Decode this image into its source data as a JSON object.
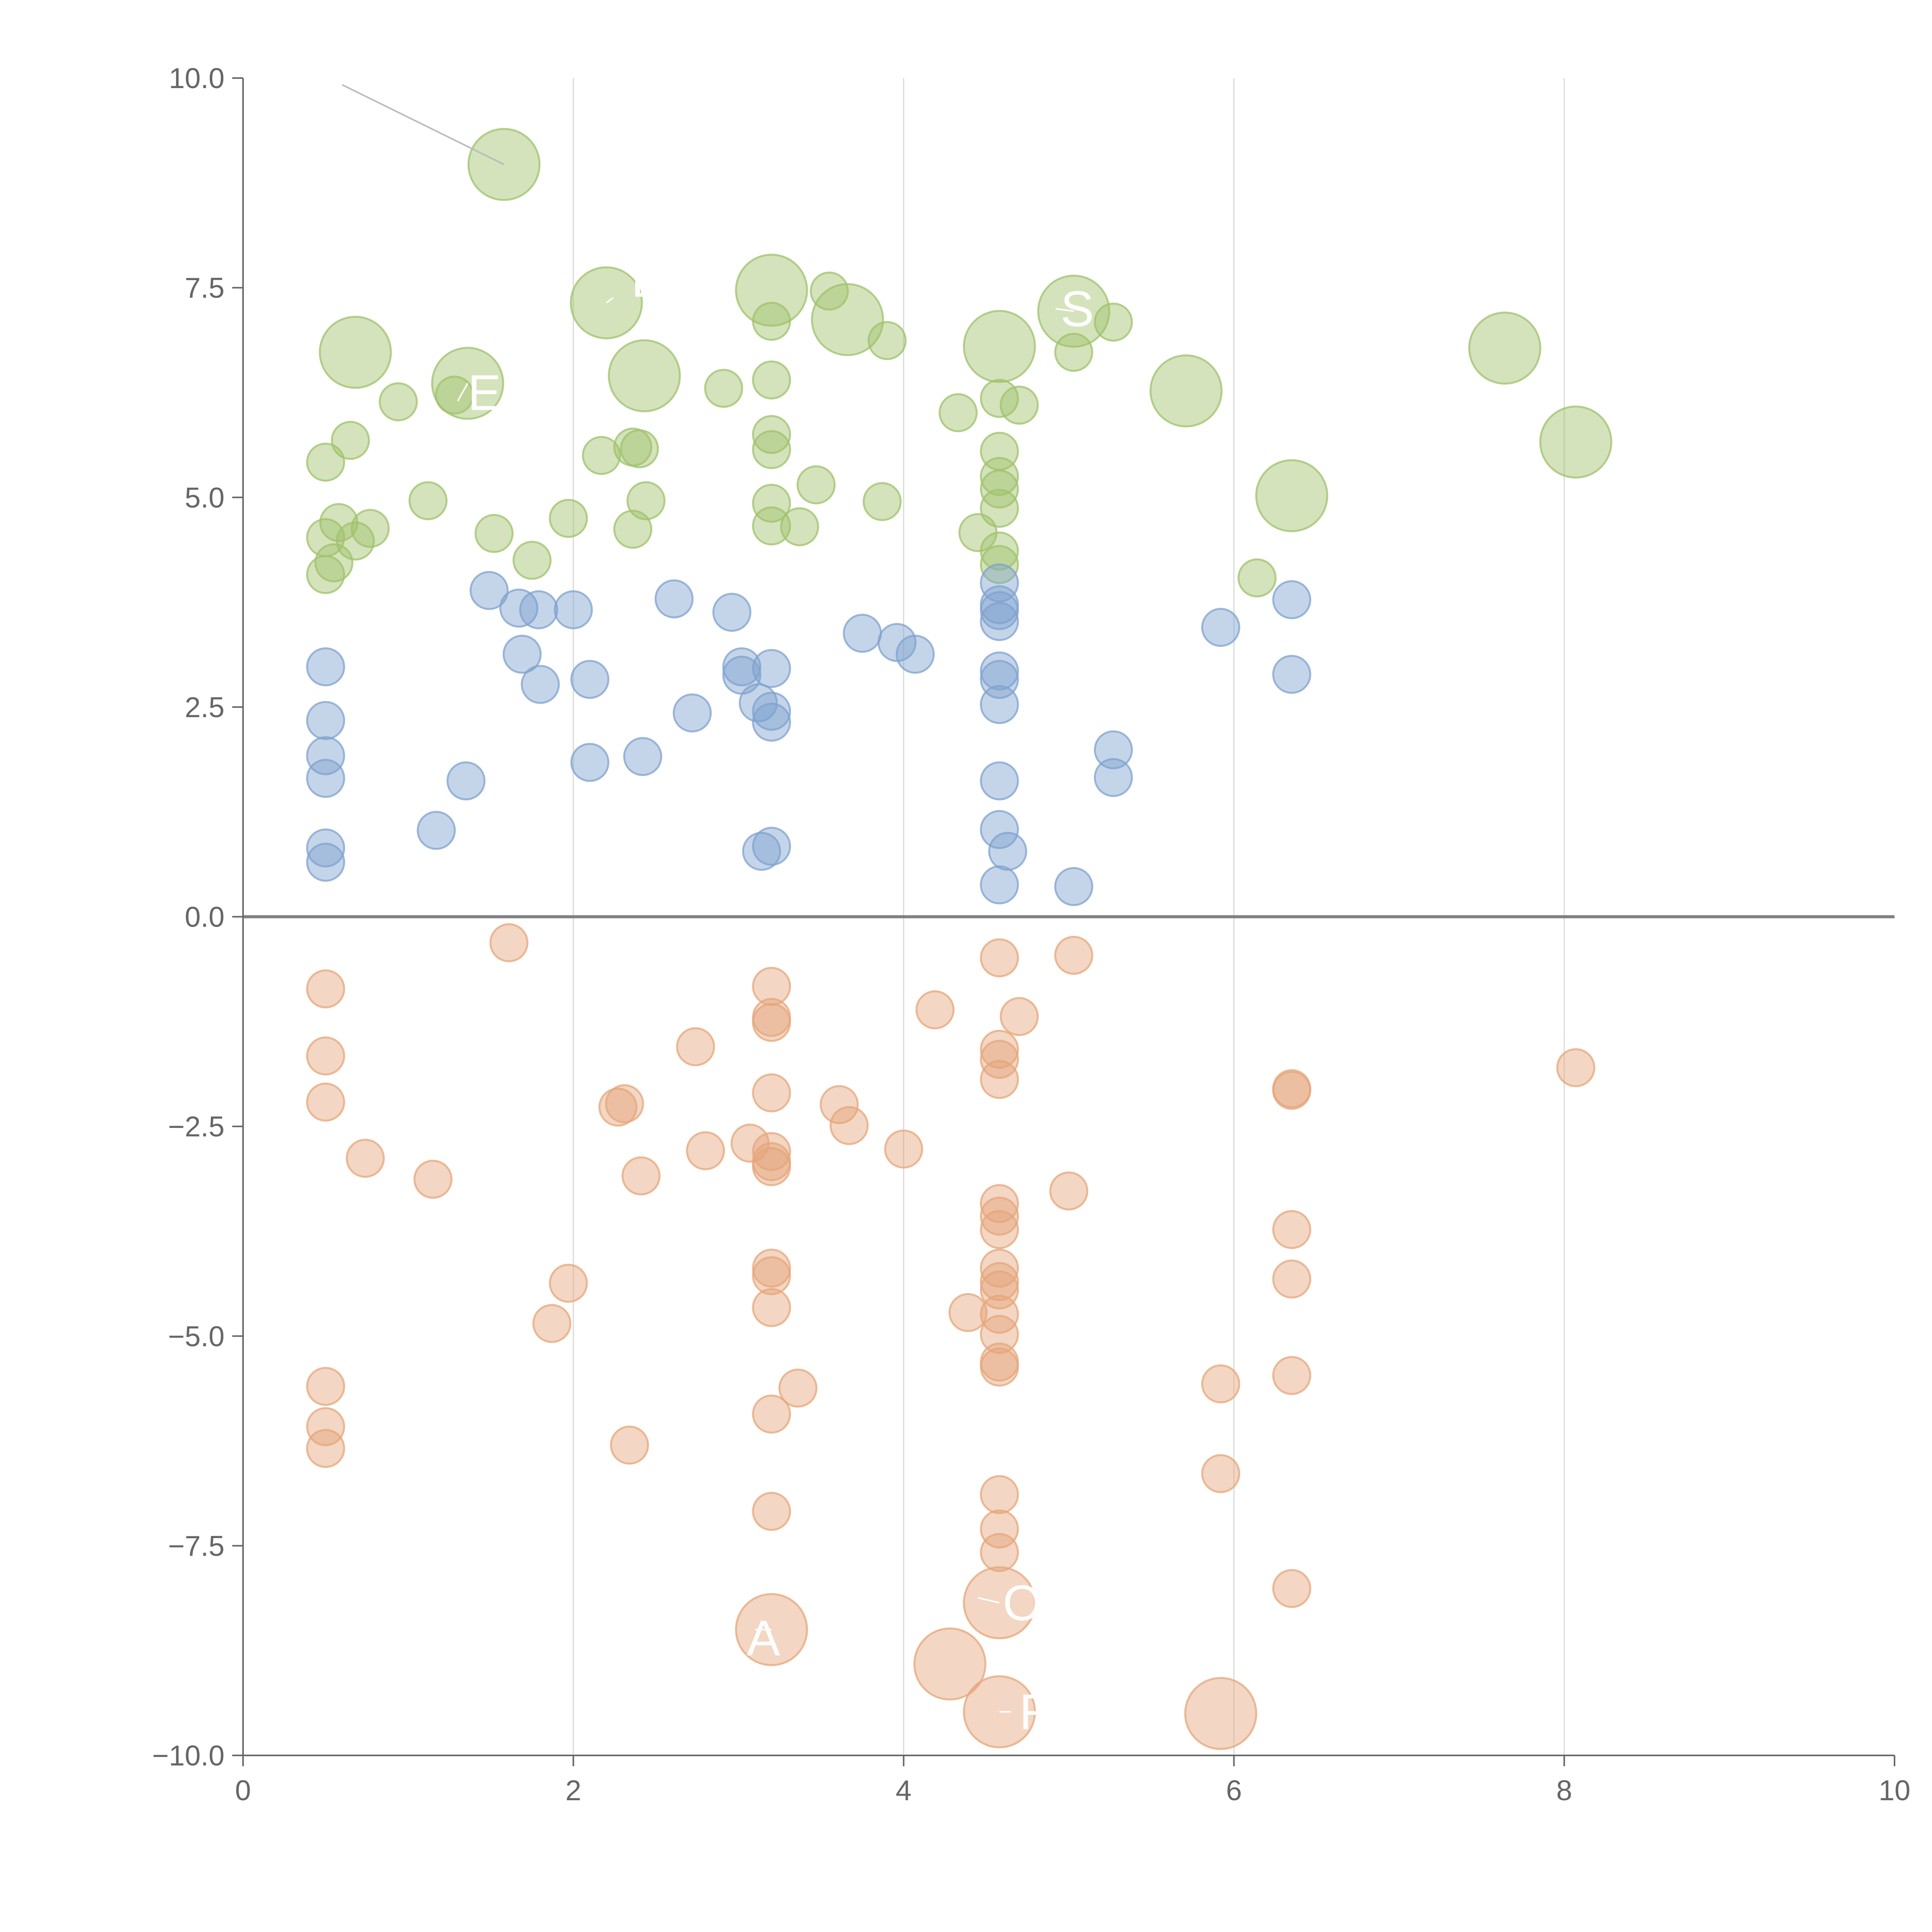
{
  "chart_data": {
    "type": "scatter",
    "subtype": "bubble",
    "title": "",
    "xlabel": "",
    "ylabel": "",
    "xlim": [
      0,
      10
    ],
    "ylim": [
      -10,
      10
    ],
    "x_ticks": [
      0,
      2,
      4,
      6,
      8,
      10
    ],
    "x_tick_labels": [
      "0",
      "2",
      "4",
      "6",
      "8",
      "10"
    ],
    "y_ticks": [
      -10,
      -7.5,
      -5,
      -2.5,
      0,
      2.5,
      5,
      7.5,
      10
    ],
    "y_tick_labels": [
      "−10.0",
      "−7.5",
      "−5.0",
      "−2.5",
      "0.0",
      "2.5",
      "5.0",
      "7.5",
      "10.0"
    ],
    "x_grid_values": [
      2,
      4,
      6,
      8
    ],
    "zero_line_y": 0,
    "series": [
      {
        "name": "green",
        "color": "#9fc26b",
        "points": [
          {
            "x": 0.5,
            "y": 5.42,
            "s": 1
          },
          {
            "x": 0.5,
            "y": 4.52,
            "s": 1
          },
          {
            "x": 0.5,
            "y": 4.08,
            "s": 1
          },
          {
            "x": 0.55,
            "y": 4.22,
            "s": 1
          },
          {
            "x": 0.58,
            "y": 4.7,
            "s": 1
          },
          {
            "x": 0.65,
            "y": 5.68,
            "s": 1
          },
          {
            "x": 0.68,
            "y": 4.48,
            "s": 1
          },
          {
            "x": 0.77,
            "y": 4.63,
            "s": 1
          },
          {
            "x": 0.94,
            "y": 6.14,
            "s": 1
          },
          {
            "x": 1.12,
            "y": 4.96,
            "s": 1
          },
          {
            "x": 1.28,
            "y": 6.22,
            "s": 1
          },
          {
            "x": 1.52,
            "y": 4.57,
            "s": 1
          },
          {
            "x": 1.75,
            "y": 4.25,
            "s": 1
          },
          {
            "x": 1.97,
            "y": 4.75,
            "s": 1
          },
          {
            "x": 2.17,
            "y": 5.5,
            "s": 1
          },
          {
            "x": 2.36,
            "y": 5.6,
            "s": 1
          },
          {
            "x": 2.36,
            "y": 4.62,
            "s": 1
          },
          {
            "x": 2.4,
            "y": 5.58,
            "s": 1
          },
          {
            "x": 2.44,
            "y": 4.96,
            "s": 1
          },
          {
            "x": 2.91,
            "y": 6.3,
            "s": 1
          },
          {
            "x": 3.2,
            "y": 7.1,
            "s": 1
          },
          {
            "x": 3.2,
            "y": 6.4,
            "s": 1
          },
          {
            "x": 3.2,
            "y": 5.75,
            "s": 1
          },
          {
            "x": 3.2,
            "y": 5.57,
            "s": 1
          },
          {
            "x": 3.2,
            "y": 4.93,
            "s": 1
          },
          {
            "x": 3.2,
            "y": 4.66,
            "s": 1
          },
          {
            "x": 3.37,
            "y": 4.65,
            "s": 1
          },
          {
            "x": 3.47,
            "y": 5.15,
            "s": 1
          },
          {
            "x": 3.55,
            "y": 7.46,
            "s": 1
          },
          {
            "x": 3.9,
            "y": 6.87,
            "s": 1
          },
          {
            "x": 3.87,
            "y": 4.95,
            "s": 1
          },
          {
            "x": 4.33,
            "y": 6.01,
            "s": 1
          },
          {
            "x": 4.45,
            "y": 4.58,
            "s": 1
          },
          {
            "x": 4.58,
            "y": 6.18,
            "s": 1
          },
          {
            "x": 4.58,
            "y": 5.55,
            "s": 1
          },
          {
            "x": 4.58,
            "y": 5.25,
            "s": 1
          },
          {
            "x": 4.58,
            "y": 5.1,
            "s": 1
          },
          {
            "x": 4.58,
            "y": 4.87,
            "s": 1
          },
          {
            "x": 4.58,
            "y": 4.36,
            "s": 1
          },
          {
            "x": 4.58,
            "y": 4.2,
            "s": 1
          },
          {
            "x": 4.7,
            "y": 6.1,
            "s": 1
          },
          {
            "x": 5.03,
            "y": 6.73,
            "s": 1
          },
          {
            "x": 5.27,
            "y": 7.09,
            "s": 1
          },
          {
            "x": 6.14,
            "y": 4.04,
            "s": 1
          },
          {
            "x": 1.58,
            "y": 8.97,
            "s": 2
          },
          {
            "x": 0.68,
            "y": 6.73,
            "s": 2
          },
          {
            "x": 1.36,
            "y": 6.36,
            "s": 2
          },
          {
            "x": 2.2,
            "y": 7.32,
            "s": 2
          },
          {
            "x": 2.43,
            "y": 6.45,
            "s": 2
          },
          {
            "x": 3.2,
            "y": 7.47,
            "s": 2
          },
          {
            "x": 3.66,
            "y": 7.12,
            "s": 2
          },
          {
            "x": 4.58,
            "y": 6.8,
            "s": 2
          },
          {
            "x": 5.03,
            "y": 7.22,
            "s": 2
          },
          {
            "x": 5.71,
            "y": 6.27,
            "s": 2
          },
          {
            "x": 6.35,
            "y": 5.02,
            "s": 2
          },
          {
            "x": 7.64,
            "y": 6.78,
            "s": 2
          },
          {
            "x": 8.07,
            "y": 5.66,
            "s": 2
          }
        ]
      },
      {
        "name": "blue",
        "color": "#7fa1cf",
        "points": [
          {
            "x": 0.5,
            "y": 2.98,
            "s": 1
          },
          {
            "x": 0.5,
            "y": 2.34,
            "s": 1
          },
          {
            "x": 0.5,
            "y": 1.92,
            "s": 1
          },
          {
            "x": 0.5,
            "y": 1.65,
            "s": 1
          },
          {
            "x": 0.5,
            "y": 0.82,
            "s": 1
          },
          {
            "x": 0.5,
            "y": 0.65,
            "s": 1
          },
          {
            "x": 1.17,
            "y": 1.03,
            "s": 1
          },
          {
            "x": 1.35,
            "y": 1.62,
            "s": 1
          },
          {
            "x": 1.49,
            "y": 3.89,
            "s": 1
          },
          {
            "x": 1.67,
            "y": 3.68,
            "s": 1
          },
          {
            "x": 1.69,
            "y": 3.13,
            "s": 1
          },
          {
            "x": 1.79,
            "y": 3.66,
            "s": 1
          },
          {
            "x": 1.8,
            "y": 2.77,
            "s": 1
          },
          {
            "x": 2.0,
            "y": 3.66,
            "s": 1
          },
          {
            "x": 2.1,
            "y": 2.83,
            "s": 1
          },
          {
            "x": 2.1,
            "y": 1.84,
            "s": 1
          },
          {
            "x": 2.42,
            "y": 1.91,
            "s": 1
          },
          {
            "x": 2.61,
            "y": 3.79,
            "s": 1
          },
          {
            "x": 2.72,
            "y": 2.43,
            "s": 1
          },
          {
            "x": 2.96,
            "y": 3.63,
            "s": 1
          },
          {
            "x": 3.02,
            "y": 2.98,
            "s": 1
          },
          {
            "x": 3.02,
            "y": 2.88,
            "s": 1
          },
          {
            "x": 3.12,
            "y": 2.55,
            "s": 1
          },
          {
            "x": 3.14,
            "y": 0.78,
            "s": 1
          },
          {
            "x": 3.2,
            "y": 2.96,
            "s": 1
          },
          {
            "x": 3.2,
            "y": 2.45,
            "s": 1
          },
          {
            "x": 3.2,
            "y": 2.32,
            "s": 1
          },
          {
            "x": 3.2,
            "y": 0.84,
            "s": 1
          },
          {
            "x": 3.75,
            "y": 3.38,
            "s": 1
          },
          {
            "x": 3.96,
            "y": 3.27,
            "s": 1
          },
          {
            "x": 4.07,
            "y": 3.13,
            "s": 1
          },
          {
            "x": 4.58,
            "y": 3.98,
            "s": 1
          },
          {
            "x": 4.58,
            "y": 3.72,
            "s": 1
          },
          {
            "x": 4.58,
            "y": 3.65,
            "s": 1
          },
          {
            "x": 4.58,
            "y": 3.52,
            "s": 1
          },
          {
            "x": 4.58,
            "y": 2.93,
            "s": 1
          },
          {
            "x": 4.58,
            "y": 2.83,
            "s": 1
          },
          {
            "x": 4.58,
            "y": 2.53,
            "s": 1
          },
          {
            "x": 4.58,
            "y": 1.62,
            "s": 1
          },
          {
            "x": 4.58,
            "y": 1.04,
            "s": 1
          },
          {
            "x": 4.58,
            "y": 0.38,
            "s": 1
          },
          {
            "x": 4.63,
            "y": 0.78,
            "s": 1
          },
          {
            "x": 5.03,
            "y": 0.36,
            "s": 1
          },
          {
            "x": 5.27,
            "y": 1.99,
            "s": 1
          },
          {
            "x": 5.27,
            "y": 1.66,
            "s": 1
          },
          {
            "x": 5.92,
            "y": 3.45,
            "s": 1
          },
          {
            "x": 6.35,
            "y": 3.78,
            "s": 1
          },
          {
            "x": 6.35,
            "y": 2.89,
            "s": 1
          }
        ]
      },
      {
        "name": "orange",
        "color": "#e5a57a",
        "points": [
          {
            "x": 0.5,
            "y": -0.86,
            "s": 1
          },
          {
            "x": 0.5,
            "y": -1.66,
            "s": 1
          },
          {
            "x": 0.5,
            "y": -2.21,
            "s": 1
          },
          {
            "x": 0.5,
            "y": -5.6,
            "s": 1
          },
          {
            "x": 0.5,
            "y": -6.08,
            "s": 1
          },
          {
            "x": 0.5,
            "y": -6.34,
            "s": 1
          },
          {
            "x": 0.74,
            "y": -2.88,
            "s": 1
          },
          {
            "x": 1.15,
            "y": -3.13,
            "s": 1
          },
          {
            "x": 1.61,
            "y": -0.31,
            "s": 1
          },
          {
            "x": 1.87,
            "y": -4.85,
            "s": 1
          },
          {
            "x": 1.97,
            "y": -4.37,
            "s": 1
          },
          {
            "x": 2.27,
            "y": -2.27,
            "s": 1
          },
          {
            "x": 2.31,
            "y": -2.23,
            "s": 1
          },
          {
            "x": 2.34,
            "y": -6.3,
            "s": 1
          },
          {
            "x": 2.41,
            "y": -3.09,
            "s": 1
          },
          {
            "x": 2.74,
            "y": -1.55,
            "s": 1
          },
          {
            "x": 2.8,
            "y": -2.79,
            "s": 1
          },
          {
            "x": 3.07,
            "y": -2.7,
            "s": 1
          },
          {
            "x": 3.2,
            "y": -0.83,
            "s": 1
          },
          {
            "x": 3.2,
            "y": -1.2,
            "s": 1
          },
          {
            "x": 3.2,
            "y": -1.26,
            "s": 1
          },
          {
            "x": 3.2,
            "y": -2.1,
            "s": 1
          },
          {
            "x": 3.2,
            "y": -2.8,
            "s": 1
          },
          {
            "x": 3.2,
            "y": -2.92,
            "s": 1
          },
          {
            "x": 3.2,
            "y": -2.98,
            "s": 1
          },
          {
            "x": 3.2,
            "y": -4.19,
            "s": 1
          },
          {
            "x": 3.2,
            "y": -4.28,
            "s": 1
          },
          {
            "x": 3.2,
            "y": -4.66,
            "s": 1
          },
          {
            "x": 3.2,
            "y": -5.93,
            "s": 1
          },
          {
            "x": 3.2,
            "y": -7.09,
            "s": 1
          },
          {
            "x": 3.36,
            "y": -5.62,
            "s": 1
          },
          {
            "x": 3.61,
            "y": -2.24,
            "s": 1
          },
          {
            "x": 3.67,
            "y": -2.49,
            "s": 1
          },
          {
            "x": 4.0,
            "y": -2.77,
            "s": 1
          },
          {
            "x": 4.19,
            "y": -1.11,
            "s": 1
          },
          {
            "x": 4.39,
            "y": -4.72,
            "s": 1
          },
          {
            "x": 4.58,
            "y": -0.49,
            "s": 1
          },
          {
            "x": 4.58,
            "y": -1.58,
            "s": 1
          },
          {
            "x": 4.58,
            "y": -1.7,
            "s": 1
          },
          {
            "x": 4.58,
            "y": -1.94,
            "s": 1
          },
          {
            "x": 4.58,
            "y": -3.42,
            "s": 1
          },
          {
            "x": 4.58,
            "y": -3.57,
            "s": 1
          },
          {
            "x": 4.58,
            "y": -3.73,
            "s": 1
          },
          {
            "x": 4.58,
            "y": -4.19,
            "s": 1
          },
          {
            "x": 4.58,
            "y": -4.35,
            "s": 1
          },
          {
            "x": 4.58,
            "y": -4.45,
            "s": 1
          },
          {
            "x": 4.58,
            "y": -4.74,
            "s": 1
          },
          {
            "x": 4.58,
            "y": -4.98,
            "s": 1
          },
          {
            "x": 4.58,
            "y": -5.31,
            "s": 1
          },
          {
            "x": 4.58,
            "y": -5.37,
            "s": 1
          },
          {
            "x": 4.58,
            "y": -6.89,
            "s": 1
          },
          {
            "x": 4.58,
            "y": -7.3,
            "s": 1
          },
          {
            "x": 4.58,
            "y": -7.58,
            "s": 1
          },
          {
            "x": 4.7,
            "y": -1.19,
            "s": 1
          },
          {
            "x": 5.0,
            "y": -3.27,
            "s": 1
          },
          {
            "x": 5.03,
            "y": -0.46,
            "s": 1
          },
          {
            "x": 5.92,
            "y": -5.57,
            "s": 1
          },
          {
            "x": 5.92,
            "y": -6.64,
            "s": 1
          },
          {
            "x": 6.35,
            "y": -2.05,
            "s": 1
          },
          {
            "x": 6.35,
            "y": -2.07,
            "s": 1
          },
          {
            "x": 6.35,
            "y": -3.73,
            "s": 1
          },
          {
            "x": 6.35,
            "y": -4.32,
            "s": 1
          },
          {
            "x": 6.35,
            "y": -5.47,
            "s": 1
          },
          {
            "x": 6.35,
            "y": -8.01,
            "s": 1
          },
          {
            "x": 8.07,
            "y": -1.8,
            "s": 1
          },
          {
            "x": 3.2,
            "y": -8.5,
            "s": 2
          },
          {
            "x": 4.28,
            "y": -8.91,
            "s": 2
          },
          {
            "x": 4.58,
            "y": -8.18,
            "s": 2
          },
          {
            "x": 4.58,
            "y": -9.48,
            "s": 2
          },
          {
            "x": 5.92,
            "y": -9.5,
            "s": 2
          }
        ]
      }
    ],
    "callouts": [
      {
        "text": "",
        "color": "#bbbbbb",
        "from": [
          1.58,
          8.97
        ],
        "to": [
          0.6,
          9.92
        ],
        "text_at": [
          0.6,
          9.92
        ]
      },
      {
        "text": "E",
        "color": "#ffffff",
        "from": [
          1.36,
          6.36
        ],
        "to": [
          1.3,
          6.15
        ],
        "text_at": [
          1.36,
          6.25
        ]
      },
      {
        "text": "D",
        "color": "#ffffff",
        "from": [
          2.2,
          7.32
        ],
        "to": [
          2.24,
          7.38
        ],
        "text_at": [
          2.35,
          7.6
        ]
      },
      {
        "text": "S",
        "color": "#ffffff",
        "from": [
          5.03,
          7.22
        ],
        "to": [
          4.92,
          7.25
        ],
        "text_at": [
          4.95,
          7.25
        ]
      },
      {
        "text": "R",
        "color": "#ffffff",
        "from": [
          4.58,
          -9.48
        ],
        "to": [
          4.65,
          -9.48
        ],
        "text_at": [
          4.7,
          -9.48
        ]
      },
      {
        "text": "OGI",
        "color": "#ffffff",
        "from": [
          4.58,
          -8.18
        ],
        "to": [
          4.45,
          -8.12
        ],
        "text_at": [
          4.6,
          -8.18
        ]
      },
      {
        "text": "A",
        "color": "#ffffff",
        "from": [
          3.2,
          -8.5
        ],
        "to": [
          3.1,
          -8.5
        ],
        "text_at": [
          3.05,
          -8.6
        ]
      }
    ]
  }
}
